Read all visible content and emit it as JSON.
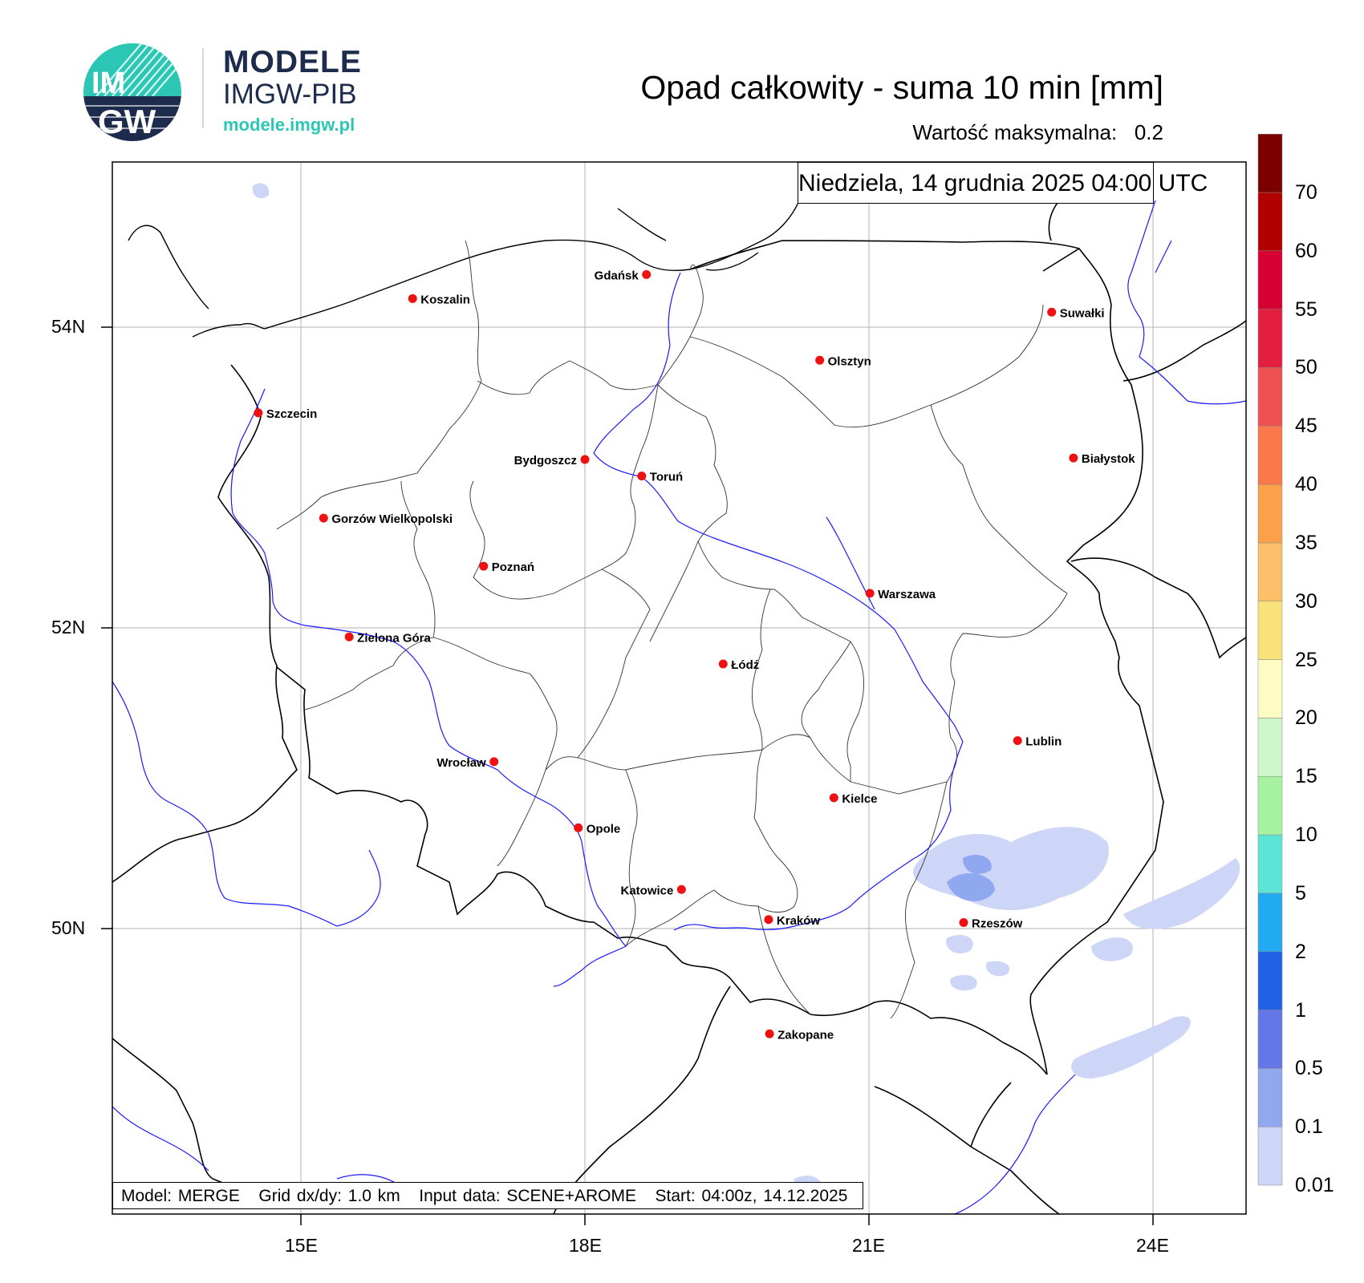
{
  "logo": {
    "mark_line1": "IM",
    "mark_line2": "GW",
    "name_line1": "MODELE",
    "name_line2": "IMGW-PIB",
    "url": "modele.imgw.pl",
    "colors": {
      "navy": "#1d2b4c",
      "teal": "#2bc7b4"
    }
  },
  "header": {
    "title": "Opad całkowity - suma 10 min [mm]",
    "max_label": "Wartość maksymalna:",
    "max_value": "0.2"
  },
  "map": {
    "datetime": "Niedziela, 14 grudnia 2025 04:00 UTC",
    "info_model": "Model: MERGE",
    "info_grid": "Grid dx/dy: 1.0 km",
    "info_input": "Input data: SCENE+AROME",
    "info_start": "Start: 04:00z, 14.12.2025",
    "lon_ticks": [
      "15E",
      "18E",
      "21E",
      "24E"
    ],
    "lat_ticks": [
      "54N",
      "52N",
      "50N"
    ],
    "colors": {
      "border": "#000000",
      "river": "#1a1aff",
      "city": "#ee1111",
      "grid": "#b0b0b0"
    },
    "cities": [
      {
        "name": "Gdańsk",
        "lon": 18.65,
        "lat": 54.35
      },
      {
        "name": "Koszalin",
        "lon": 16.18,
        "lat": 54.19
      },
      {
        "name": "Suwałki",
        "lon": 22.93,
        "lat": 54.1
      },
      {
        "name": "Olsztyn",
        "lon": 20.48,
        "lat": 53.78
      },
      {
        "name": "Szczecin",
        "lon": 14.55,
        "lat": 53.43
      },
      {
        "name": "Białystok",
        "lon": 23.16,
        "lat": 53.13
      },
      {
        "name": "Bydgoszcz",
        "lon": 18.0,
        "lat": 53.12
      },
      {
        "name": "Toruń",
        "lon": 18.6,
        "lat": 53.01
      },
      {
        "name": "Gorzów Wielkopolski",
        "lon": 15.24,
        "lat": 52.73
      },
      {
        "name": "Poznań",
        "lon": 16.93,
        "lat": 52.41
      },
      {
        "name": "Warszawa",
        "lon": 21.01,
        "lat": 52.23
      },
      {
        "name": "Zielona Góra",
        "lon": 15.51,
        "lat": 51.94
      },
      {
        "name": "Łódź",
        "lon": 19.46,
        "lat": 51.76
      },
      {
        "name": "Lublin",
        "lon": 22.57,
        "lat": 51.25
      },
      {
        "name": "Wrocław",
        "lon": 17.04,
        "lat": 51.11
      },
      {
        "name": "Kielce",
        "lon": 20.63,
        "lat": 50.87
      },
      {
        "name": "Opole",
        "lon": 17.93,
        "lat": 50.67
      },
      {
        "name": "Katowice",
        "lon": 19.02,
        "lat": 50.26
      },
      {
        "name": "Rzeszów",
        "lon": 22.0,
        "lat": 50.04
      },
      {
        "name": "Kraków",
        "lon": 19.94,
        "lat": 50.06
      },
      {
        "name": "Zakopane",
        "lon": 19.95,
        "lat": 49.3
      }
    ]
  },
  "colorbar": {
    "labels": [
      "0.01",
      "0.1",
      "0.5",
      "1",
      "2",
      "5",
      "10",
      "15",
      "20",
      "25",
      "30",
      "35",
      "40",
      "45",
      "50",
      "55",
      "60",
      "70"
    ],
    "colors": [
      "#cdd6f6",
      "#8fa8ef",
      "#6477e6",
      "#2062e6",
      "#21aaf2",
      "#5ce5d6",
      "#a6f2a0",
      "#cff6cb",
      "#fefbc3",
      "#fae27b",
      "#fcc068",
      "#fca14a",
      "#fa7849",
      "#ee5151",
      "#e21f3f",
      "#d60033",
      "#b20000",
      "#7b0000"
    ]
  }
}
